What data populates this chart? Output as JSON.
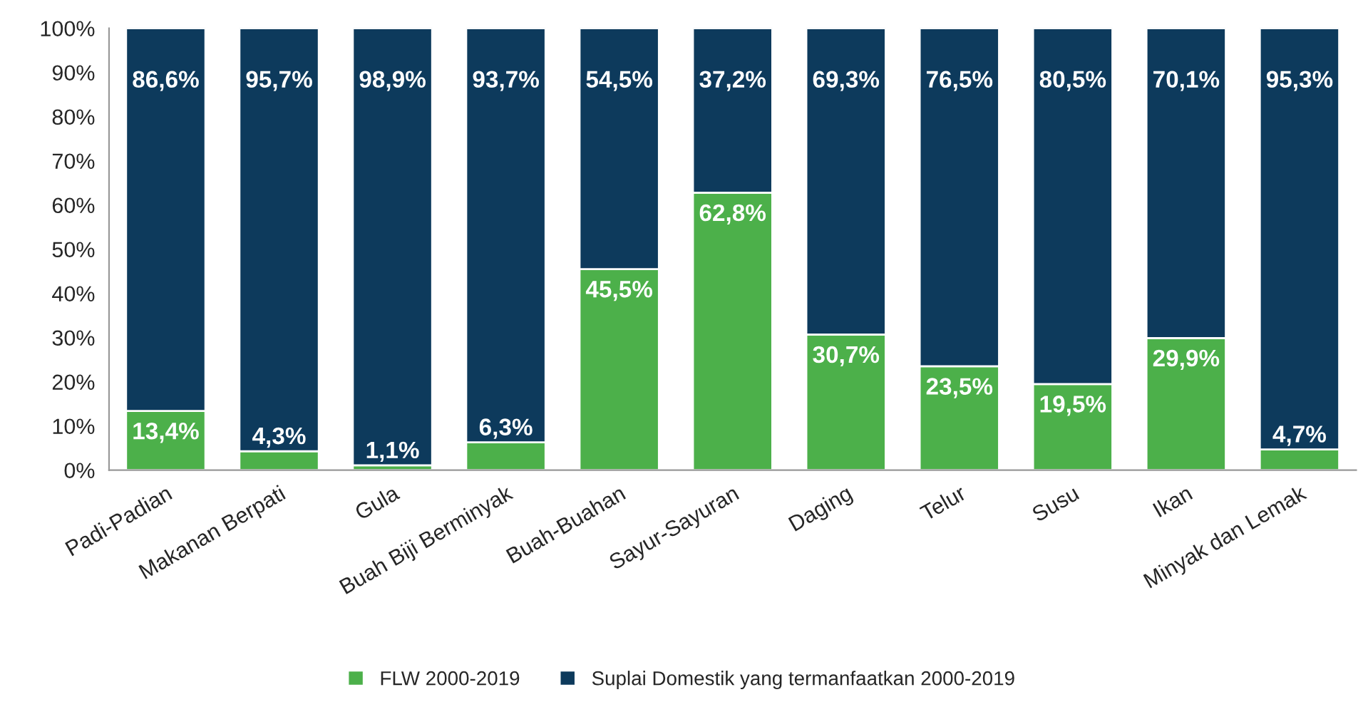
{
  "chart_data": {
    "type": "bar",
    "stacked": true,
    "categories": [
      "Padi-Padian",
      "Makanan Berpati",
      "Gula",
      "Buah Biji Berminyak",
      "Buah-Buahan",
      "Sayur-Sayuran",
      "Daging",
      "Telur",
      "Susu",
      "Ikan",
      "Minyak dan Lemak"
    ],
    "series": [
      {
        "name": "FLW 2000-2019",
        "color": "#4cb04a",
        "values": [
          13.4,
          4.3,
          1.1,
          6.3,
          45.5,
          62.8,
          30.7,
          23.5,
          19.5,
          29.9,
          4.7
        ],
        "value_labels": [
          "13,4%",
          "4,3%",
          "1,1%",
          "6,3%",
          "45,5%",
          "62,8%",
          "30,7%",
          "23,5%",
          "19,5%",
          "29,9%",
          "4,7%"
        ]
      },
      {
        "name": "Suplai Domestik yang termanfaatkan 2000-2019",
        "color": "#0d3a5c",
        "values": [
          86.6,
          95.7,
          98.9,
          93.7,
          54.5,
          37.2,
          69.3,
          76.5,
          80.5,
          70.1,
          95.3
        ],
        "value_labels": [
          "86,6%",
          "95,7%",
          "98,9%",
          "93,7%",
          "54,5%",
          "37,2%",
          "69,3%",
          "76,5%",
          "80,5%",
          "70,1%",
          "95,3%"
        ]
      }
    ],
    "ylim": [
      0,
      100
    ],
    "yticks": [
      {
        "value": 0,
        "label": "0%"
      },
      {
        "value": 10,
        "label": "10%"
      },
      {
        "value": 20,
        "label": "20%"
      },
      {
        "value": 30,
        "label": "30%"
      },
      {
        "value": 40,
        "label": "40%"
      },
      {
        "value": 50,
        "label": "50%"
      },
      {
        "value": 60,
        "label": "60%"
      },
      {
        "value": 70,
        "label": "70%"
      },
      {
        "value": 80,
        "label": "80%"
      },
      {
        "value": 90,
        "label": "90%"
      },
      {
        "value": 100,
        "label": "100%"
      }
    ],
    "legend": "bottom"
  }
}
